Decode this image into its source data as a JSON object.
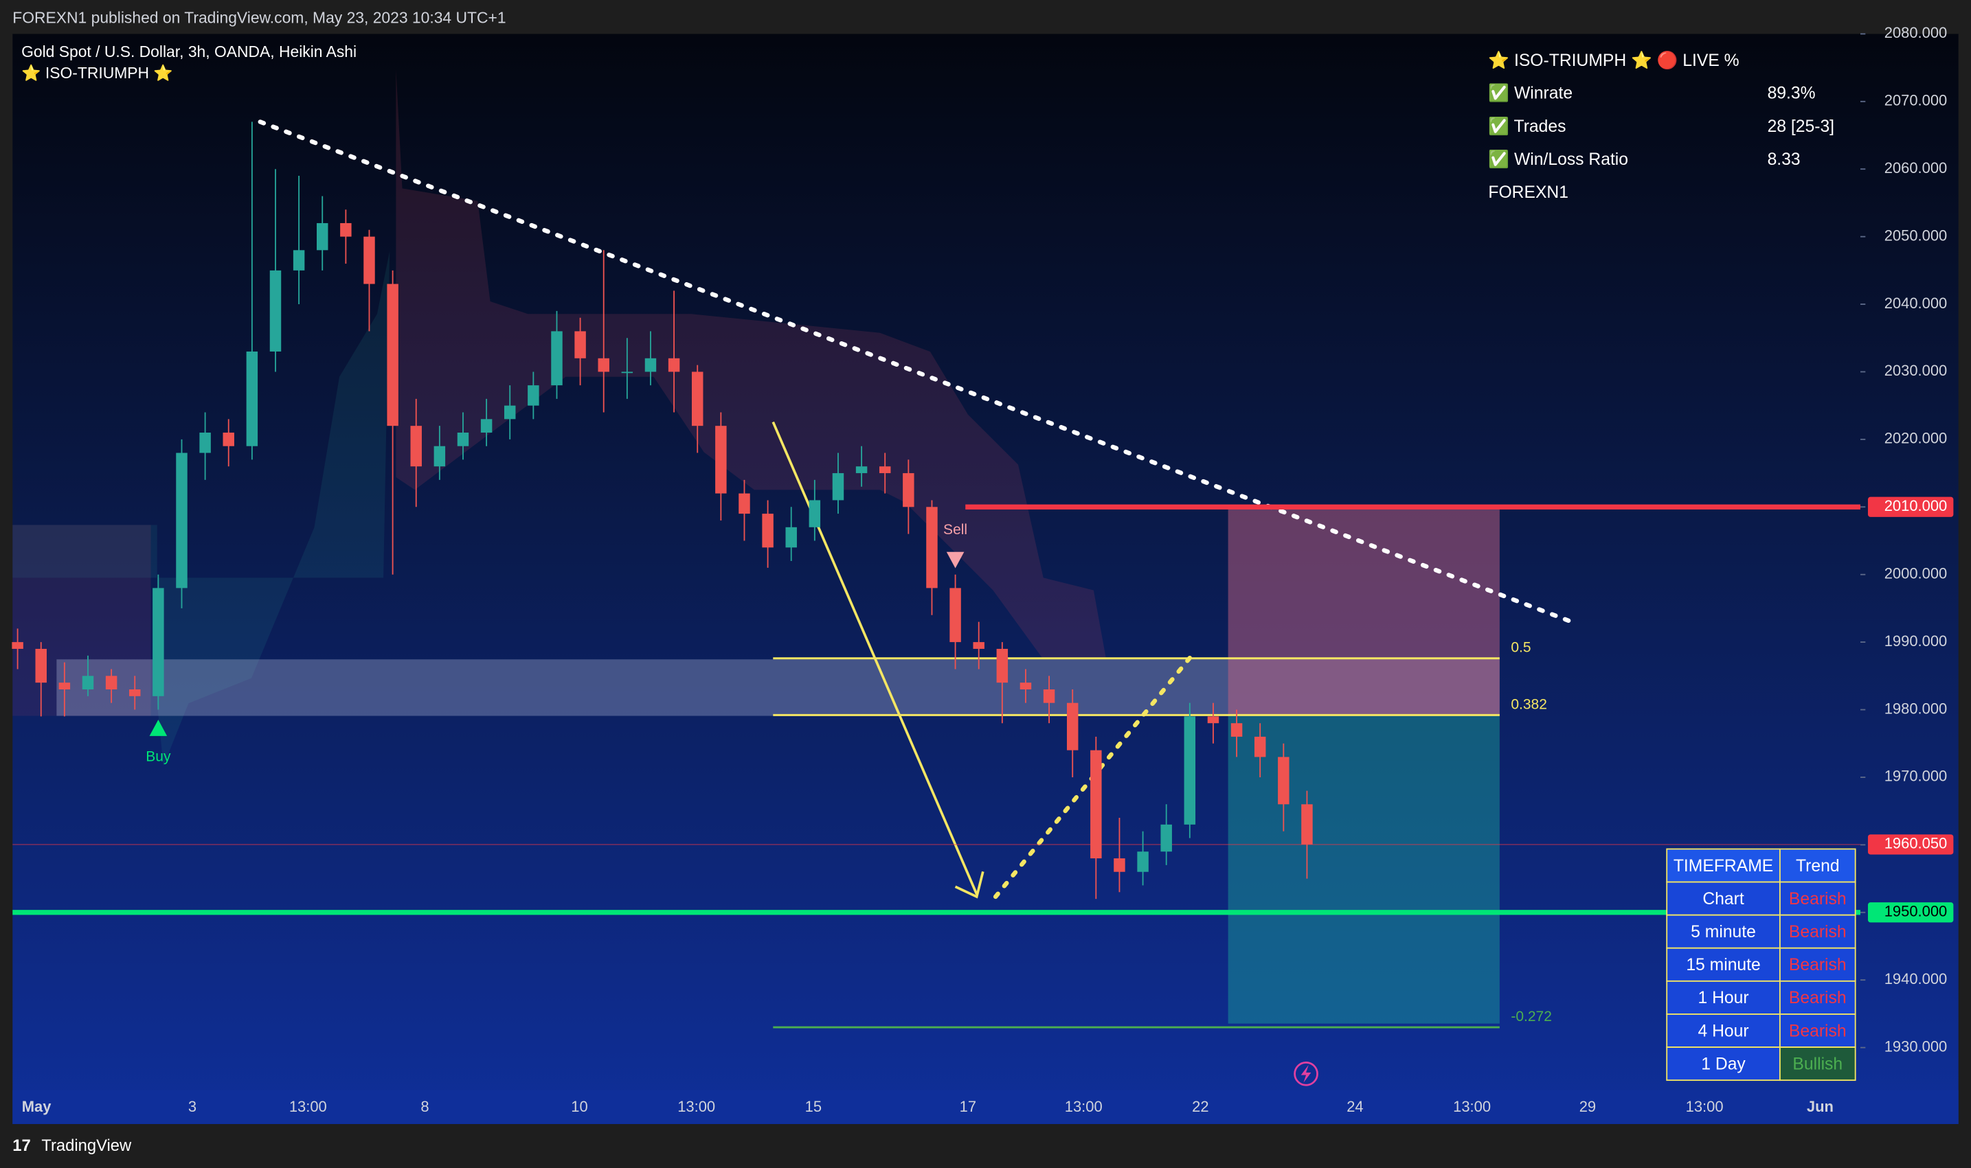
{
  "header": "FOREXN1 published on TradingView.com, May 23, 2023 10:34 UTC+1",
  "footer": "TradingView",
  "chart_data": {
    "type": "candlestick",
    "title": "Gold Spot / U.S. Dollar, 3h, OANDA, Heikin Ashi",
    "subtitle": "⭐ ISO-TRIUMPH ⭐",
    "up_color": "#26a69a",
    "down_color": "#ef5350",
    "ylim": [
      1923.7,
      2080
    ],
    "yticks": [
      {
        "value": 1930,
        "label": "1930.000"
      },
      {
        "value": 1940,
        "label": "1940.000"
      },
      {
        "value": 1950,
        "label": "1950.000"
      },
      {
        "value": 1960,
        "label": "1960.000"
      },
      {
        "value": 1970,
        "label": "1970.000"
      },
      {
        "value": 1980,
        "label": "1980.000"
      },
      {
        "value": 1990,
        "label": "1990.000"
      },
      {
        "value": 2000,
        "label": "2000.000"
      },
      {
        "value": 2010,
        "label": "2010.000"
      },
      {
        "value": 2020,
        "label": "2020.000"
      },
      {
        "value": 2030,
        "label": "2030.000"
      },
      {
        "value": 2040,
        "label": "2040.000"
      },
      {
        "value": 2050,
        "label": "2050.000"
      },
      {
        "value": 2060,
        "label": "2060.000"
      },
      {
        "value": 2070,
        "label": "2070.000"
      },
      {
        "value": 2080,
        "label": "2080.000"
      }
    ],
    "x_labels": [
      "May",
      "3",
      "13:00",
      "8",
      "10",
      "13:00",
      "15",
      "17",
      "13:00",
      "22",
      "24",
      "13:00",
      "29",
      "13:00",
      "Jun"
    ],
    "ohlc": [
      [
        1990,
        1992,
        1986,
        1989
      ],
      [
        1989,
        1990,
        1979,
        1984
      ],
      [
        1984,
        1987,
        1979,
        1983
      ],
      [
        1983,
        1988,
        1982,
        1985
      ],
      [
        1985,
        1986,
        1981,
        1983
      ],
      [
        1983,
        1985,
        1980,
        1982
      ],
      [
        1982,
        2000,
        1980,
        1998
      ],
      [
        1998,
        2020,
        1995,
        2018
      ],
      [
        2018,
        2024,
        2014,
        2021
      ],
      [
        2021,
        2023,
        2016,
        2019
      ],
      [
        2019,
        2067,
        2017,
        2033
      ],
      [
        2033,
        2060,
        2030,
        2045
      ],
      [
        2045,
        2059,
        2040,
        2048
      ],
      [
        2048,
        2056,
        2045,
        2052
      ],
      [
        2052,
        2054,
        2046,
        2050
      ],
      [
        2050,
        2051,
        2036,
        2043
      ],
      [
        2043,
        2045,
        2000,
        2022
      ],
      [
        2022,
        2026,
        2010,
        2016
      ],
      [
        2016,
        2022,
        2014,
        2019
      ],
      [
        2019,
        2024,
        2017,
        2021
      ],
      [
        2021,
        2026,
        2019,
        2023
      ],
      [
        2023,
        2028,
        2020,
        2025
      ],
      [
        2025,
        2030,
        2023,
        2028
      ],
      [
        2028,
        2039,
        2026,
        2036
      ],
      [
        2036,
        2038,
        2028,
        2032
      ],
      [
        2032,
        2048,
        2024,
        2030
      ],
      [
        2030,
        2035,
        2026,
        2030
      ],
      [
        2030,
        2036,
        2028,
        2032
      ],
      [
        2032,
        2042,
        2024,
        2030
      ],
      [
        2030,
        2031,
        2018,
        2022
      ],
      [
        2022,
        2024,
        2008,
        2012
      ],
      [
        2012,
        2014,
        2005,
        2009
      ],
      [
        2009,
        2011,
        2001,
        2004
      ],
      [
        2004,
        2010,
        2002,
        2007
      ],
      [
        2007,
        2014,
        2005,
        2011
      ],
      [
        2011,
        2018,
        2009,
        2015
      ],
      [
        2015,
        2019,
        2013,
        2016
      ],
      [
        2016,
        2018,
        2012,
        2015
      ],
      [
        2015,
        2017,
        2006,
        2010
      ],
      [
        2010,
        2011,
        1994,
        1998
      ],
      [
        1998,
        2000,
        1986,
        1990
      ],
      [
        1990,
        1993,
        1986,
        1989
      ],
      [
        1989,
        1990,
        1978,
        1984
      ],
      [
        1984,
        1986,
        1981,
        1983
      ],
      [
        1983,
        1985,
        1978,
        1981
      ],
      [
        1981,
        1983,
        1970,
        1974
      ],
      [
        1974,
        1976,
        1952,
        1958
      ],
      [
        1958,
        1964,
        1953,
        1956
      ],
      [
        1956,
        1962,
        1954,
        1959
      ],
      [
        1959,
        1966,
        1957,
        1963
      ],
      [
        1963,
        1981,
        1961,
        1979
      ],
      [
        1979,
        1981,
        1975,
        1978
      ],
      [
        1978,
        1980,
        1973,
        1976
      ],
      [
        1976,
        1978,
        1970,
        1973
      ],
      [
        1973,
        1975,
        1962,
        1966
      ],
      [
        1966,
        1968,
        1955,
        1960.05
      ]
    ],
    "levels": [
      {
        "value": 2010,
        "label": "2010.000",
        "color": "#f23645"
      },
      {
        "value": 1960.05,
        "label": "1960.050",
        "color": "#f23645"
      },
      {
        "value": 1950,
        "label": "1950.000",
        "color": "#00e676"
      }
    ],
    "fib_levels": [
      {
        "value": 1987.6,
        "label": "0.5",
        "color": "#f5e663"
      },
      {
        "value": 1979.2,
        "label": "0.382",
        "color": "#f5e663"
      },
      {
        "value": 1933,
        "label": "-0.272",
        "color": "#4caf50"
      }
    ],
    "signals": [
      {
        "label": "Buy",
        "index": 6,
        "color": "#00e676"
      },
      {
        "label": "Sell",
        "index": 40,
        "color": "#f7a1a8"
      }
    ]
  },
  "stats_table": {
    "title": "⭐ ISO-TRIUMPH ⭐  🔴 LIVE %",
    "rows": [
      [
        "✅ Winrate",
        "89.3%"
      ],
      [
        "✅ Trades",
        "28 [25-3]"
      ],
      [
        "✅ Win/Loss Ratio",
        "8.33"
      ]
    ],
    "footer": "FOREXN1"
  },
  "trend_table": {
    "header": [
      "TIMEFRAME",
      "Trend"
    ],
    "rows": [
      [
        "Chart",
        "Bearish"
      ],
      [
        "5 minute",
        "Bearish"
      ],
      [
        "15 minute",
        "Bearish"
      ],
      [
        "1 Hour",
        "Bearish"
      ],
      [
        "4 Hour",
        "Bearish"
      ],
      [
        "1 Day",
        "Bullish"
      ]
    ]
  }
}
